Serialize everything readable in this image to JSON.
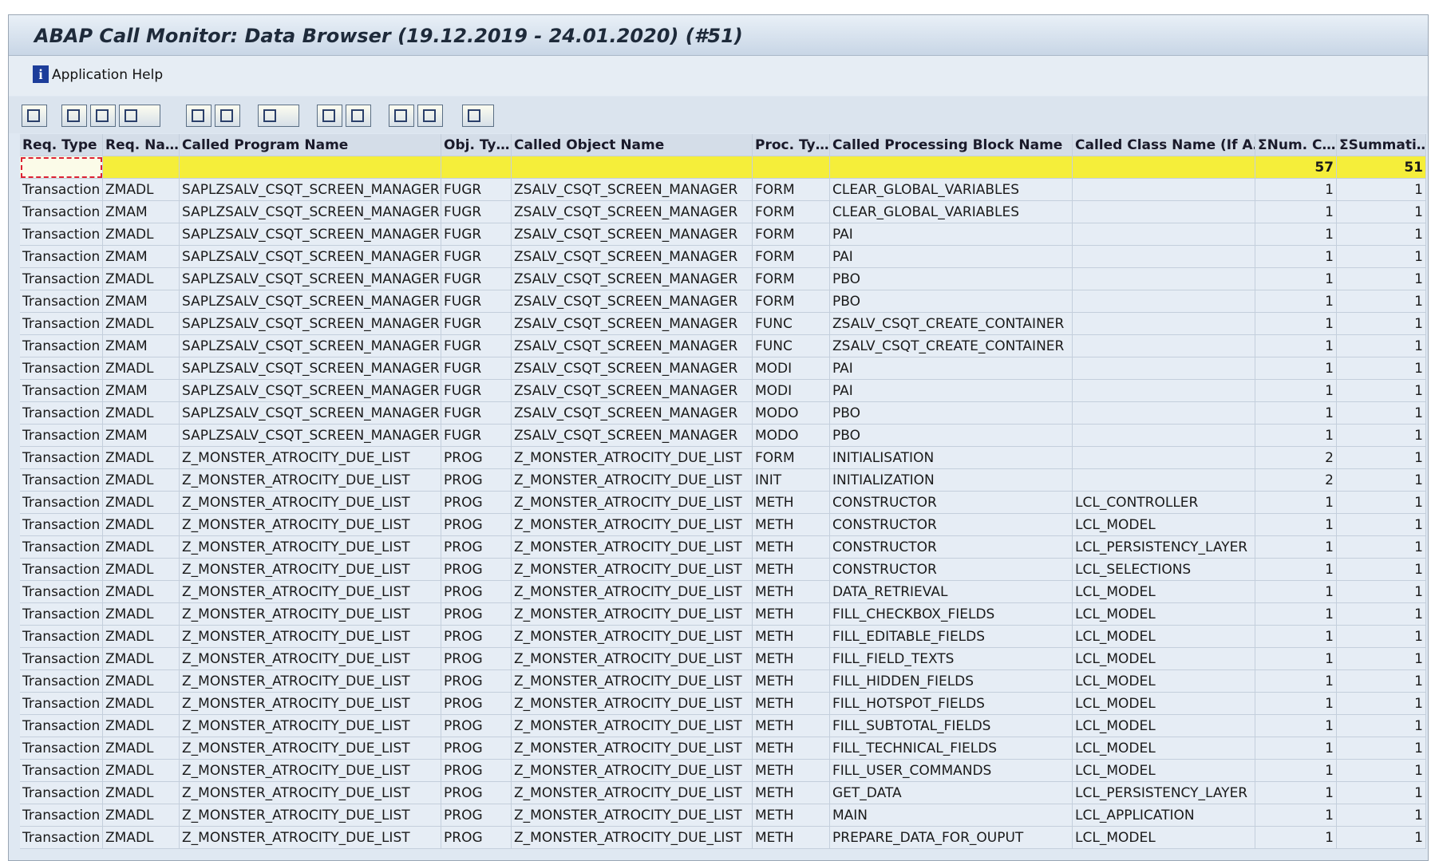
{
  "header": {
    "title": "ABAP Call Monitor: Data Browser (19.12.2019 - 24.01.2020) (#51)"
  },
  "menu": {
    "items": [
      "Application Help"
    ]
  },
  "table": {
    "columns": [
      "Req. Type",
      "Req. Na…",
      "Called Program Name",
      "Obj. Ty…",
      "Called Object Name",
      "Proc. Ty…",
      "Called Processing Block Name",
      "Called Class Name (If A…",
      "ΣNum. C…",
      "ΣSummati…"
    ],
    "totals": [
      57,
      51
    ],
    "rows": [
      [
        "Transaction",
        "ZMADL",
        "SAPLZSALV_CSQT_SCREEN_MANAGER",
        "FUGR",
        "ZSALV_CSQT_SCREEN_MANAGER",
        "FORM",
        "CLEAR_GLOBAL_VARIABLES",
        null,
        1,
        1
      ],
      [
        "Transaction",
        "ZMAM",
        "SAPLZSALV_CSQT_SCREEN_MANAGER",
        "FUGR",
        "ZSALV_CSQT_SCREEN_MANAGER",
        "FORM",
        "CLEAR_GLOBAL_VARIABLES",
        null,
        1,
        1
      ],
      [
        "Transaction",
        "ZMADL",
        "SAPLZSALV_CSQT_SCREEN_MANAGER",
        "FUGR",
        "ZSALV_CSQT_SCREEN_MANAGER",
        "FORM",
        "PAI",
        null,
        1,
        1
      ],
      [
        "Transaction",
        "ZMAM",
        "SAPLZSALV_CSQT_SCREEN_MANAGER",
        "FUGR",
        "ZSALV_CSQT_SCREEN_MANAGER",
        "FORM",
        "PAI",
        null,
        1,
        1
      ],
      [
        "Transaction",
        "ZMADL",
        "SAPLZSALV_CSQT_SCREEN_MANAGER",
        "FUGR",
        "ZSALV_CSQT_SCREEN_MANAGER",
        "FORM",
        "PBO",
        null,
        1,
        1
      ],
      [
        "Transaction",
        "ZMAM",
        "SAPLZSALV_CSQT_SCREEN_MANAGER",
        "FUGR",
        "ZSALV_CSQT_SCREEN_MANAGER",
        "FORM",
        "PBO",
        null,
        1,
        1
      ],
      [
        "Transaction",
        "ZMADL",
        "SAPLZSALV_CSQT_SCREEN_MANAGER",
        "FUGR",
        "ZSALV_CSQT_SCREEN_MANAGER",
        "FUNC",
        "ZSALV_CSQT_CREATE_CONTAINER",
        null,
        1,
        1
      ],
      [
        "Transaction",
        "ZMAM",
        "SAPLZSALV_CSQT_SCREEN_MANAGER",
        "FUGR",
        "ZSALV_CSQT_SCREEN_MANAGER",
        "FUNC",
        "ZSALV_CSQT_CREATE_CONTAINER",
        null,
        1,
        1
      ],
      [
        "Transaction",
        "ZMADL",
        "SAPLZSALV_CSQT_SCREEN_MANAGER",
        "FUGR",
        "ZSALV_CSQT_SCREEN_MANAGER",
        "MODI",
        "PAI",
        null,
        1,
        1
      ],
      [
        "Transaction",
        "ZMAM",
        "SAPLZSALV_CSQT_SCREEN_MANAGER",
        "FUGR",
        "ZSALV_CSQT_SCREEN_MANAGER",
        "MODI",
        "PAI",
        null,
        1,
        1
      ],
      [
        "Transaction",
        "ZMADL",
        "SAPLZSALV_CSQT_SCREEN_MANAGER",
        "FUGR",
        "ZSALV_CSQT_SCREEN_MANAGER",
        "MODO",
        "PBO",
        null,
        1,
        1
      ],
      [
        "Transaction",
        "ZMAM",
        "SAPLZSALV_CSQT_SCREEN_MANAGER",
        "FUGR",
        "ZSALV_CSQT_SCREEN_MANAGER",
        "MODO",
        "PBO",
        null,
        1,
        1
      ],
      [
        "Transaction",
        "ZMADL",
        "Z_MONSTER_ATROCITY_DUE_LIST",
        "PROG",
        "Z_MONSTER_ATROCITY_DUE_LIST",
        "FORM",
        "INITIALISATION",
        null,
        2,
        1
      ],
      [
        "Transaction",
        "ZMADL",
        "Z_MONSTER_ATROCITY_DUE_LIST",
        "PROG",
        "Z_MONSTER_ATROCITY_DUE_LIST",
        "INIT",
        "INITIALIZATION",
        null,
        2,
        1
      ],
      [
        "Transaction",
        "ZMADL",
        "Z_MONSTER_ATROCITY_DUE_LIST",
        "PROG",
        "Z_MONSTER_ATROCITY_DUE_LIST",
        "METH",
        "CONSTRUCTOR",
        "LCL_CONTROLLER",
        1,
        1
      ],
      [
        "Transaction",
        "ZMADL",
        "Z_MONSTER_ATROCITY_DUE_LIST",
        "PROG",
        "Z_MONSTER_ATROCITY_DUE_LIST",
        "METH",
        "CONSTRUCTOR",
        "LCL_MODEL",
        1,
        1
      ],
      [
        "Transaction",
        "ZMADL",
        "Z_MONSTER_ATROCITY_DUE_LIST",
        "PROG",
        "Z_MONSTER_ATROCITY_DUE_LIST",
        "METH",
        "CONSTRUCTOR",
        "LCL_PERSISTENCY_LAYER",
        1,
        1
      ],
      [
        "Transaction",
        "ZMADL",
        "Z_MONSTER_ATROCITY_DUE_LIST",
        "PROG",
        "Z_MONSTER_ATROCITY_DUE_LIST",
        "METH",
        "CONSTRUCTOR",
        "LCL_SELECTIONS",
        1,
        1
      ],
      [
        "Transaction",
        "ZMADL",
        "Z_MONSTER_ATROCITY_DUE_LIST",
        "PROG",
        "Z_MONSTER_ATROCITY_DUE_LIST",
        "METH",
        "DATA_RETRIEVAL",
        "LCL_MODEL",
        1,
        1
      ],
      [
        "Transaction",
        "ZMADL",
        "Z_MONSTER_ATROCITY_DUE_LIST",
        "PROG",
        "Z_MONSTER_ATROCITY_DUE_LIST",
        "METH",
        "FILL_CHECKBOX_FIELDS",
        "LCL_MODEL",
        1,
        1
      ],
      [
        "Transaction",
        "ZMADL",
        "Z_MONSTER_ATROCITY_DUE_LIST",
        "PROG",
        "Z_MONSTER_ATROCITY_DUE_LIST",
        "METH",
        "FILL_EDITABLE_FIELDS",
        "LCL_MODEL",
        1,
        1
      ],
      [
        "Transaction",
        "ZMADL",
        "Z_MONSTER_ATROCITY_DUE_LIST",
        "PROG",
        "Z_MONSTER_ATROCITY_DUE_LIST",
        "METH",
        "FILL_FIELD_TEXTS",
        "LCL_MODEL",
        1,
        1
      ],
      [
        "Transaction",
        "ZMADL",
        "Z_MONSTER_ATROCITY_DUE_LIST",
        "PROG",
        "Z_MONSTER_ATROCITY_DUE_LIST",
        "METH",
        "FILL_HIDDEN_FIELDS",
        "LCL_MODEL",
        1,
        1
      ],
      [
        "Transaction",
        "ZMADL",
        "Z_MONSTER_ATROCITY_DUE_LIST",
        "PROG",
        "Z_MONSTER_ATROCITY_DUE_LIST",
        "METH",
        "FILL_HOTSPOT_FIELDS",
        "LCL_MODEL",
        1,
        1
      ],
      [
        "Transaction",
        "ZMADL",
        "Z_MONSTER_ATROCITY_DUE_LIST",
        "PROG",
        "Z_MONSTER_ATROCITY_DUE_LIST",
        "METH",
        "FILL_SUBTOTAL_FIELDS",
        "LCL_MODEL",
        1,
        1
      ],
      [
        "Transaction",
        "ZMADL",
        "Z_MONSTER_ATROCITY_DUE_LIST",
        "PROG",
        "Z_MONSTER_ATROCITY_DUE_LIST",
        "METH",
        "FILL_TECHNICAL_FIELDS",
        "LCL_MODEL",
        1,
        1
      ],
      [
        "Transaction",
        "ZMADL",
        "Z_MONSTER_ATROCITY_DUE_LIST",
        "PROG",
        "Z_MONSTER_ATROCITY_DUE_LIST",
        "METH",
        "FILL_USER_COMMANDS",
        "LCL_MODEL",
        1,
        1
      ],
      [
        "Transaction",
        "ZMADL",
        "Z_MONSTER_ATROCITY_DUE_LIST",
        "PROG",
        "Z_MONSTER_ATROCITY_DUE_LIST",
        "METH",
        "GET_DATA",
        "LCL_PERSISTENCY_LAYER",
        1,
        1
      ],
      [
        "Transaction",
        "ZMADL",
        "Z_MONSTER_ATROCITY_DUE_LIST",
        "PROG",
        "Z_MONSTER_ATROCITY_DUE_LIST",
        "METH",
        "MAIN",
        "LCL_APPLICATION",
        1,
        1
      ],
      [
        "Transaction",
        "ZMADL",
        "Z_MONSTER_ATROCITY_DUE_LIST",
        "PROG",
        "Z_MONSTER_ATROCITY_DUE_LIST",
        "METH",
        "PREPARE_DATA_FOR_OUPUT",
        "LCL_MODEL",
        1,
        1
      ]
    ]
  }
}
